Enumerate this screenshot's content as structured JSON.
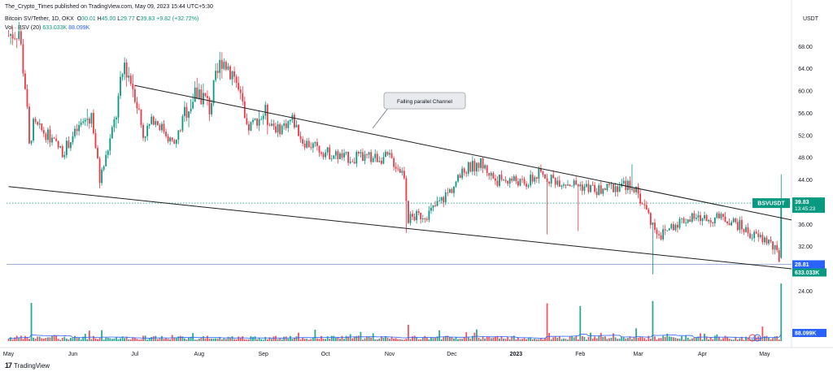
{
  "header": {
    "publisher": "The_Crypto_Times published on TradingView.com, May 09, 2023 15:44 UTC+5:30",
    "symbol_line": "Bitcoin SV/Tether, 1D, OKX",
    "ohlc": {
      "o_label": "O",
      "o": "30.01",
      "h_label": "H",
      "h": "45.00",
      "l_label": "L",
      "l": "29.77",
      "c_label": "C",
      "c": "39.83",
      "change": "+9.82 (+32.72%)"
    },
    "volume_line": {
      "label": "Vol · BSV (20)",
      "v1": "633.033K",
      "v2": "88.099K"
    }
  },
  "footer": {
    "logo_mark": "17",
    "logo_text": "TradingView"
  },
  "annotation": {
    "text": "Falling parallel Channel"
  },
  "colors": {
    "up": "#089981",
    "down": "#f23645",
    "trend": "#1e1e1e",
    "ma": "#2962ff",
    "price_tag": "#089981",
    "hline": "#9fb4d9",
    "bg": "#ffffff"
  },
  "chart_data": {
    "type": "candlestick",
    "currency": "USDT",
    "y_ticks": [
      24,
      28,
      32,
      36,
      40,
      44,
      48,
      52,
      56,
      60,
      64,
      68
    ],
    "y_range": [
      15,
      72
    ],
    "x_labels": [
      "May",
      "Jun",
      "Jul",
      "Aug",
      "Sep",
      "Oct",
      "Nov",
      "Dec",
      "2023",
      "Feb",
      "Mar",
      "Apr",
      "May"
    ],
    "x_label_dates": [
      "2022-05-01",
      "2022-06-01",
      "2022-07-01",
      "2022-08-01",
      "2022-09-01",
      "2022-10-01",
      "2022-11-01",
      "2022-12-01",
      "2023-01-01",
      "2023-02-01",
      "2023-03-01",
      "2023-04-01",
      "2023-05-01"
    ],
    "date_range": [
      "2022-04-30",
      "2023-05-14"
    ],
    "price_anchors": [
      [
        "2022-05-01",
        70
      ],
      [
        "2022-05-06",
        71
      ],
      [
        "2022-05-09",
        61
      ],
      [
        "2022-05-11",
        50
      ],
      [
        "2022-05-13",
        54
      ],
      [
        "2022-05-20",
        52
      ],
      [
        "2022-05-27",
        49
      ],
      [
        "2022-06-05",
        54
      ],
      [
        "2022-06-10",
        56
      ],
      [
        "2022-06-14",
        44
      ],
      [
        "2022-06-17",
        48
      ],
      [
        "2022-06-22",
        56
      ],
      [
        "2022-06-26",
        65
      ],
      [
        "2022-07-01",
        60
      ],
      [
        "2022-07-05",
        52
      ],
      [
        "2022-07-10",
        55
      ],
      [
        "2022-07-15",
        53
      ],
      [
        "2022-07-20",
        50
      ],
      [
        "2022-07-26",
        57
      ],
      [
        "2022-08-01",
        60
      ],
      [
        "2022-08-06",
        57
      ],
      [
        "2022-08-12",
        66
      ],
      [
        "2022-08-18",
        63
      ],
      [
        "2022-08-24",
        53
      ],
      [
        "2022-09-01",
        56
      ],
      [
        "2022-09-08",
        53
      ],
      [
        "2022-09-15",
        55
      ],
      [
        "2022-09-20",
        51
      ],
      [
        "2022-10-01",
        49
      ],
      [
        "2022-10-10",
        48
      ],
      [
        "2022-10-18",
        48
      ],
      [
        "2022-10-25",
        48
      ],
      [
        "2022-11-01",
        48
      ],
      [
        "2022-11-08",
        45
      ],
      [
        "2022-11-10",
        37
      ],
      [
        "2022-11-20",
        38
      ],
      [
        "2022-11-30",
        42
      ],
      [
        "2022-12-08",
        46
      ],
      [
        "2022-12-15",
        47
      ],
      [
        "2022-12-22",
        44
      ],
      [
        "2023-01-01",
        44
      ],
      [
        "2023-01-05",
        43
      ],
      [
        "2023-01-12",
        45
      ],
      [
        "2023-01-20",
        44
      ],
      [
        "2023-02-01",
        43
      ],
      [
        "2023-02-10",
        42
      ],
      [
        "2023-02-20",
        43
      ],
      [
        "2023-02-26",
        43
      ],
      [
        "2023-03-03",
        40
      ],
      [
        "2023-03-08",
        36
      ],
      [
        "2023-03-12",
        34
      ],
      [
        "2023-03-18",
        36
      ],
      [
        "2023-03-24",
        37
      ],
      [
        "2023-04-05",
        37
      ],
      [
        "2023-04-13",
        37
      ],
      [
        "2023-04-18",
        36
      ],
      [
        "2023-04-25",
        34
      ],
      [
        "2023-05-03",
        33
      ],
      [
        "2023-05-08",
        30
      ],
      [
        "2023-05-09",
        39.83
      ]
    ],
    "wick_events": [
      {
        "date": "2022-06-14",
        "low": 42.5
      },
      {
        "date": "2022-11-09",
        "low": 34.5
      },
      {
        "date": "2023-01-16",
        "low": 34.2
      },
      {
        "date": "2023-01-31",
        "low": 34.8
      },
      {
        "date": "2023-03-08",
        "low": 27.0
      },
      {
        "date": "2023-05-08",
        "low": 29.2
      },
      {
        "date": "2023-05-09",
        "high": 45.0
      },
      {
        "date": "2023-02-26",
        "high": 46.8
      }
    ],
    "volume_spikes": [
      {
        "date": "2022-05-12",
        "vol": 420
      },
      {
        "date": "2022-06-15",
        "vol": 120
      },
      {
        "date": "2022-11-10",
        "vol": 180
      },
      {
        "date": "2023-01-16",
        "vol": 415
      },
      {
        "date": "2023-02-01",
        "vol": 385
      },
      {
        "date": "2023-03-08",
        "vol": 440
      },
      {
        "date": "2023-04-30",
        "vol": 160
      },
      {
        "date": "2023-05-09",
        "vol": 633
      }
    ],
    "volume_ma_last": "88.099K",
    "volume_last": "633.033K",
    "trendlines": [
      {
        "name": "upper",
        "from": [
          "2022-07-01",
          61.0
        ],
        "to": [
          "2023-05-14",
          36.8
        ]
      },
      {
        "name": "lower",
        "from": [
          "2022-05-01",
          42.8
        ],
        "to": [
          "2023-05-14",
          28.0
        ]
      }
    ],
    "horizontal_lines": [
      {
        "value": 28.81,
        "label": "28.81",
        "style": "solid"
      },
      {
        "value": 39.83,
        "label": "39.83",
        "style": "dotted"
      }
    ],
    "last_price": "39.83",
    "countdown": "13:45:23",
    "symbol_tag": "BSVUSDT",
    "volume_tags": [
      "633.033K",
      "88.099K"
    ]
  }
}
